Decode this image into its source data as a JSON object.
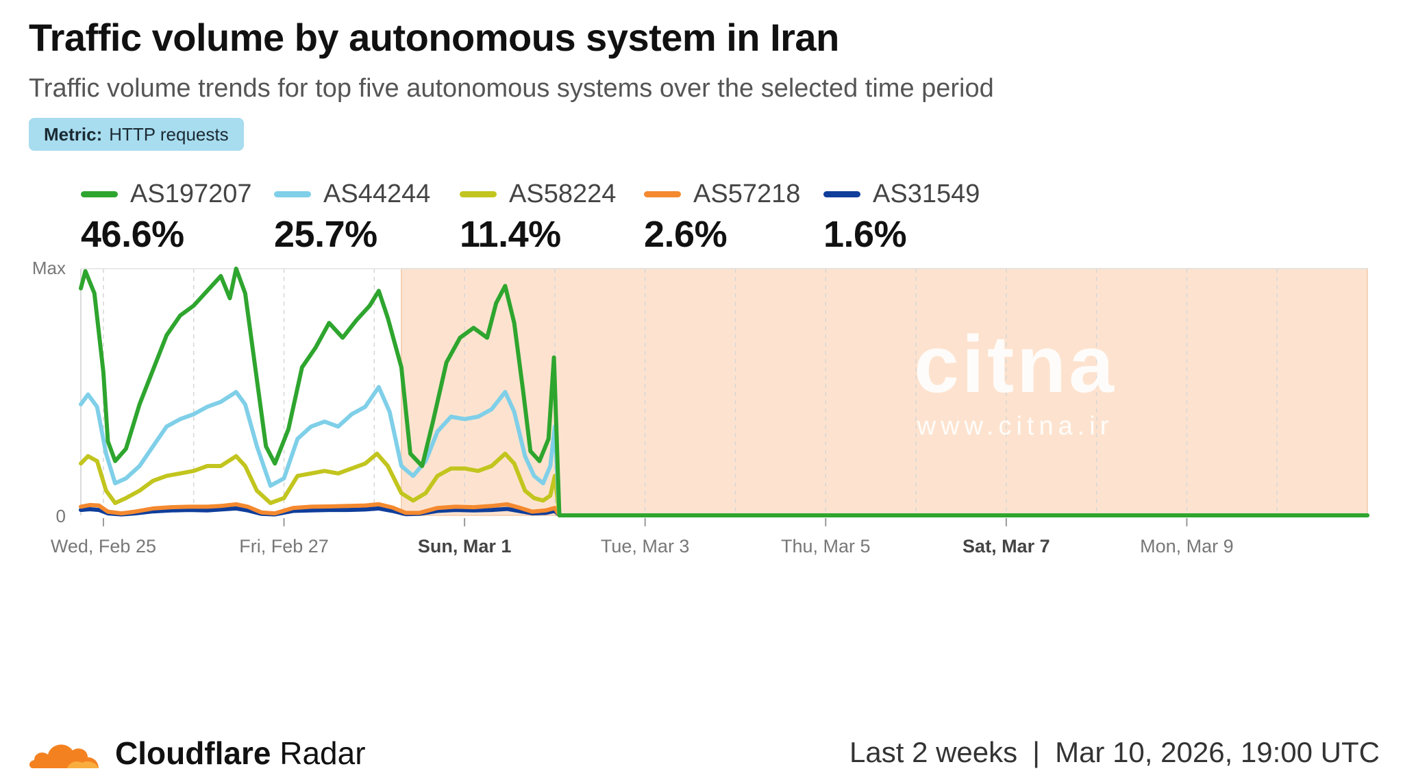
{
  "header": {
    "title": "Traffic volume by autonomous system in Iran",
    "subtitle": "Traffic volume trends for top five autonomous systems over the selected time period"
  },
  "metric": {
    "label": "Metric:",
    "value": "HTTP requests"
  },
  "legend": [
    {
      "name": "AS197207",
      "pct": "46.6%",
      "color": "#2ea52e"
    },
    {
      "name": "AS44244",
      "pct": "25.7%",
      "color": "#7fcfe8"
    },
    {
      "name": "AS58224",
      "pct": "11.4%",
      "color": "#c2c51e"
    },
    {
      "name": "AS57218",
      "pct": "2.6%",
      "color": "#f4892f"
    },
    {
      "name": "AS31549",
      "pct": "1.6%",
      "color": "#0f3e9b"
    }
  ],
  "chart_data": {
    "type": "line",
    "title": "Traffic volume by autonomous system in Iran",
    "subtitle": "Traffic volume trends for top five autonomous systems over the selected time period",
    "y_tick_labels": [
      "Max",
      "0"
    ],
    "ylim": [
      0,
      1
    ],
    "x_tick_labels": [
      {
        "label": "Wed, Feb 25",
        "bold": false
      },
      {
        "label": "Fri, Feb 27",
        "bold": false
      },
      {
        "label": "Sun, Mar 1",
        "bold": true
      },
      {
        "label": "Tue, Mar 3",
        "bold": false
      },
      {
        "label": "Thu, Mar 5",
        "bold": false
      },
      {
        "label": "Sat, Mar 7",
        "bold": true
      },
      {
        "label": "Mon, Mar 9",
        "bold": false
      }
    ],
    "x_tick_days": [
      0.25,
      2.25,
      4.25,
      6.25,
      8.25,
      10.25,
      12.25
    ],
    "x_range_days": [
      0,
      14.25
    ],
    "shaded_region_days": [
      3.55,
      14.25
    ],
    "shaded_color": "#fde3cf",
    "grid": "vertical dashed",
    "series": [
      {
        "name": "AS197207",
        "color": "#2ea52e",
        "points": [
          [
            0,
            0.92
          ],
          [
            0.05,
            0.99
          ],
          [
            0.15,
            0.9
          ],
          [
            0.25,
            0.58
          ],
          [
            0.3,
            0.3
          ],
          [
            0.38,
            0.22
          ],
          [
            0.5,
            0.27
          ],
          [
            0.65,
            0.45
          ],
          [
            0.8,
            0.59
          ],
          [
            0.95,
            0.73
          ],
          [
            1.1,
            0.81
          ],
          [
            1.25,
            0.85
          ],
          [
            1.4,
            0.91
          ],
          [
            1.55,
            0.97
          ],
          [
            1.65,
            0.88
          ],
          [
            1.72,
            1.0
          ],
          [
            1.82,
            0.9
          ],
          [
            1.95,
            0.55
          ],
          [
            2.05,
            0.28
          ],
          [
            2.15,
            0.21
          ],
          [
            2.3,
            0.35
          ],
          [
            2.45,
            0.6
          ],
          [
            2.6,
            0.68
          ],
          [
            2.75,
            0.78
          ],
          [
            2.9,
            0.72
          ],
          [
            3.05,
            0.79
          ],
          [
            3.2,
            0.85
          ],
          [
            3.3,
            0.91
          ],
          [
            3.4,
            0.8
          ],
          [
            3.55,
            0.6
          ],
          [
            3.65,
            0.25
          ],
          [
            3.78,
            0.2
          ],
          [
            3.9,
            0.38
          ],
          [
            4.05,
            0.62
          ],
          [
            4.2,
            0.72
          ],
          [
            4.35,
            0.76
          ],
          [
            4.5,
            0.72
          ],
          [
            4.6,
            0.86
          ],
          [
            4.7,
            0.93
          ],
          [
            4.8,
            0.78
          ],
          [
            4.9,
            0.5
          ],
          [
            4.98,
            0.26
          ],
          [
            5.08,
            0.22
          ],
          [
            5.18,
            0.31
          ],
          [
            5.24,
            0.64
          ],
          [
            5.3,
            0.0
          ],
          [
            14.25,
            0.0
          ]
        ]
      },
      {
        "name": "AS44244",
        "color": "#7fcfe8",
        "points": [
          [
            0,
            0.45
          ],
          [
            0.08,
            0.49
          ],
          [
            0.18,
            0.44
          ],
          [
            0.28,
            0.25
          ],
          [
            0.38,
            0.13
          ],
          [
            0.5,
            0.15
          ],
          [
            0.65,
            0.2
          ],
          [
            0.8,
            0.28
          ],
          [
            0.95,
            0.36
          ],
          [
            1.1,
            0.39
          ],
          [
            1.25,
            0.41
          ],
          [
            1.4,
            0.44
          ],
          [
            1.55,
            0.46
          ],
          [
            1.72,
            0.5
          ],
          [
            1.82,
            0.45
          ],
          [
            1.95,
            0.28
          ],
          [
            2.1,
            0.12
          ],
          [
            2.25,
            0.15
          ],
          [
            2.4,
            0.31
          ],
          [
            2.55,
            0.36
          ],
          [
            2.7,
            0.38
          ],
          [
            2.85,
            0.36
          ],
          [
            3.0,
            0.41
          ],
          [
            3.15,
            0.44
          ],
          [
            3.3,
            0.52
          ],
          [
            3.42,
            0.42
          ],
          [
            3.55,
            0.2
          ],
          [
            3.68,
            0.16
          ],
          [
            3.82,
            0.22
          ],
          [
            3.95,
            0.34
          ],
          [
            4.1,
            0.4
          ],
          [
            4.25,
            0.39
          ],
          [
            4.4,
            0.4
          ],
          [
            4.55,
            0.43
          ],
          [
            4.7,
            0.5
          ],
          [
            4.8,
            0.42
          ],
          [
            4.92,
            0.24
          ],
          [
            5.02,
            0.16
          ],
          [
            5.12,
            0.13
          ],
          [
            5.2,
            0.2
          ],
          [
            5.25,
            0.36
          ],
          [
            5.3,
            0.0
          ],
          [
            14.25,
            0.0
          ]
        ]
      },
      {
        "name": "AS58224",
        "color": "#c2c51e",
        "points": [
          [
            0,
            0.21
          ],
          [
            0.08,
            0.24
          ],
          [
            0.18,
            0.22
          ],
          [
            0.28,
            0.1
          ],
          [
            0.38,
            0.05
          ],
          [
            0.5,
            0.07
          ],
          [
            0.65,
            0.1
          ],
          [
            0.8,
            0.14
          ],
          [
            0.95,
            0.16
          ],
          [
            1.1,
            0.17
          ],
          [
            1.25,
            0.18
          ],
          [
            1.4,
            0.2
          ],
          [
            1.55,
            0.2
          ],
          [
            1.72,
            0.24
          ],
          [
            1.82,
            0.2
          ],
          [
            1.95,
            0.1
          ],
          [
            2.1,
            0.05
          ],
          [
            2.25,
            0.07
          ],
          [
            2.4,
            0.16
          ],
          [
            2.55,
            0.17
          ],
          [
            2.7,
            0.18
          ],
          [
            2.85,
            0.17
          ],
          [
            3.0,
            0.19
          ],
          [
            3.15,
            0.21
          ],
          [
            3.28,
            0.25
          ],
          [
            3.4,
            0.2
          ],
          [
            3.55,
            0.09
          ],
          [
            3.68,
            0.06
          ],
          [
            3.82,
            0.09
          ],
          [
            3.95,
            0.16
          ],
          [
            4.1,
            0.19
          ],
          [
            4.25,
            0.19
          ],
          [
            4.4,
            0.18
          ],
          [
            4.55,
            0.2
          ],
          [
            4.7,
            0.25
          ],
          [
            4.8,
            0.21
          ],
          [
            4.92,
            0.1
          ],
          [
            5.02,
            0.07
          ],
          [
            5.12,
            0.06
          ],
          [
            5.2,
            0.08
          ],
          [
            5.25,
            0.16
          ],
          [
            5.3,
            0.0
          ],
          [
            14.25,
            0.0
          ]
        ]
      },
      {
        "name": "AS57218",
        "color": "#f4892f",
        "points": [
          [
            0,
            0.035
          ],
          [
            0.1,
            0.042
          ],
          [
            0.2,
            0.04
          ],
          [
            0.3,
            0.015
          ],
          [
            0.45,
            0.008
          ],
          [
            0.6,
            0.015
          ],
          [
            0.8,
            0.028
          ],
          [
            1.0,
            0.033
          ],
          [
            1.2,
            0.035
          ],
          [
            1.4,
            0.035
          ],
          [
            1.55,
            0.038
          ],
          [
            1.72,
            0.045
          ],
          [
            1.85,
            0.035
          ],
          [
            2.0,
            0.012
          ],
          [
            2.15,
            0.008
          ],
          [
            2.35,
            0.03
          ],
          [
            2.55,
            0.035
          ],
          [
            2.75,
            0.036
          ],
          [
            2.95,
            0.038
          ],
          [
            3.15,
            0.04
          ],
          [
            3.3,
            0.045
          ],
          [
            3.45,
            0.032
          ],
          [
            3.6,
            0.01
          ],
          [
            3.75,
            0.01
          ],
          [
            3.95,
            0.03
          ],
          [
            4.15,
            0.035
          ],
          [
            4.35,
            0.033
          ],
          [
            4.55,
            0.038
          ],
          [
            4.72,
            0.045
          ],
          [
            4.85,
            0.032
          ],
          [
            5.0,
            0.015
          ],
          [
            5.15,
            0.02
          ],
          [
            5.25,
            0.03
          ],
          [
            5.3,
            0.0
          ],
          [
            14.25,
            0.0
          ]
        ]
      },
      {
        "name": "AS31549",
        "color": "#0f3e9b",
        "points": [
          [
            0,
            0.022
          ],
          [
            0.1,
            0.025
          ],
          [
            0.2,
            0.022
          ],
          [
            0.3,
            0.008
          ],
          [
            0.45,
            0.004
          ],
          [
            0.6,
            0.008
          ],
          [
            0.8,
            0.016
          ],
          [
            1.0,
            0.02
          ],
          [
            1.2,
            0.022
          ],
          [
            1.4,
            0.02
          ],
          [
            1.55,
            0.024
          ],
          [
            1.72,
            0.028
          ],
          [
            1.85,
            0.02
          ],
          [
            2.0,
            0.006
          ],
          [
            2.15,
            0.004
          ],
          [
            2.35,
            0.018
          ],
          [
            2.55,
            0.02
          ],
          [
            2.75,
            0.022
          ],
          [
            2.95,
            0.022
          ],
          [
            3.15,
            0.024
          ],
          [
            3.3,
            0.028
          ],
          [
            3.45,
            0.018
          ],
          [
            3.6,
            0.005
          ],
          [
            3.75,
            0.006
          ],
          [
            3.95,
            0.018
          ],
          [
            4.15,
            0.022
          ],
          [
            4.35,
            0.02
          ],
          [
            4.55,
            0.022
          ],
          [
            4.72,
            0.026
          ],
          [
            4.85,
            0.018
          ],
          [
            5.0,
            0.008
          ],
          [
            5.15,
            0.01
          ],
          [
            5.25,
            0.018
          ],
          [
            5.3,
            0.0
          ],
          [
            14.25,
            0.0
          ]
        ]
      }
    ]
  },
  "watermark": {
    "logo": "citna",
    "url": "www.citna.ir"
  },
  "footer": {
    "brand_bold": "Cloudflare",
    "brand_regular": "Radar",
    "range": "Last 2 weeks",
    "separator": "|",
    "timestamp": "Mar 10, 2026, 19:00 UTC"
  }
}
